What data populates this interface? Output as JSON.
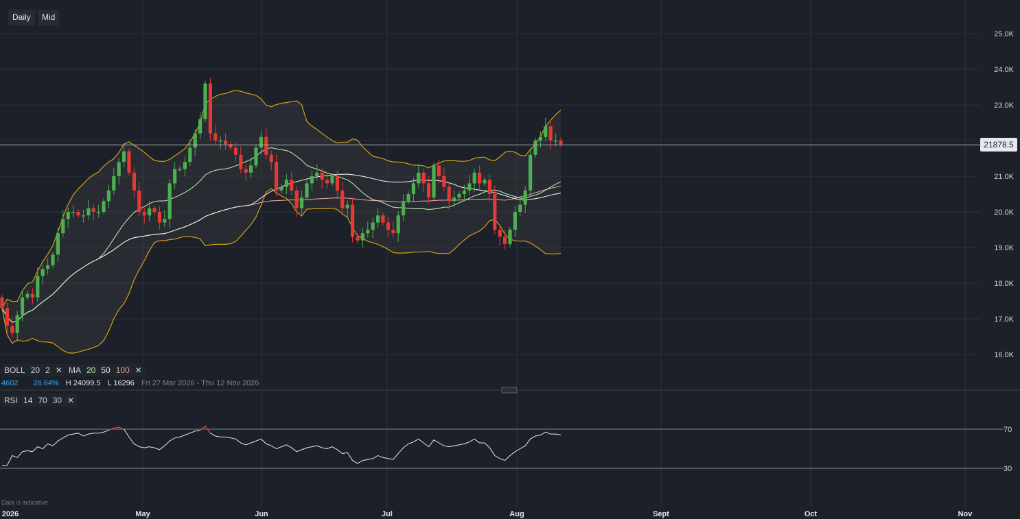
{
  "toolbar": {
    "interval_label": "Daily",
    "price_type_label": "Mid"
  },
  "current_price": "21878.5",
  "legend": {
    "boll": {
      "label": "BOLL",
      "p1": "20",
      "p2": "2"
    },
    "ma": {
      "label": "MA",
      "p1": "20",
      "p2": "50",
      "p3": "100"
    },
    "rsi": {
      "label": "RSI",
      "p1": "14",
      "p2": "70",
      "p3": "30"
    },
    "close_symbol": "✕"
  },
  "info": {
    "change": "4602",
    "change_pct": "26.64%",
    "high": "H 24099.5",
    "low": "L 16296",
    "range": "Fri 27 Mar 2026 - Thu 12 Nov 2026"
  },
  "disclaimer": "Data is indicative",
  "colors": {
    "background": "#1c2129",
    "up": "#4caf50",
    "down": "#e53935",
    "boll": "#d4a017",
    "ma20": "#b5e8b0",
    "ma50": "#e8ece8",
    "ma100": "#e89a9a",
    "rsi": "#e8e8e8",
    "rsi_overbought": "#e53935"
  },
  "chart_data": {
    "type": "candlestick",
    "y_ticks": [
      "25.0K",
      "24.0K",
      "23.0K",
      "22.0K",
      "21.0K",
      "20.0K",
      "19.0K",
      "18.0K",
      "17.0K",
      "16.0K"
    ],
    "y_values": [
      25000,
      24000,
      23000,
      22000,
      21000,
      20000,
      19000,
      18000,
      17000,
      16000
    ],
    "x_labels": [
      "2026",
      "May",
      "Jun",
      "Jul",
      "Aug",
      "Sept",
      "Oct",
      "Nov"
    ],
    "price_range": [
      15400,
      25500
    ],
    "closes": [
      17300,
      16800,
      16600,
      17100,
      17600,
      17700,
      17600,
      18200,
      18400,
      18500,
      18800,
      19400,
      19800,
      20000,
      20000,
      19900,
      19900,
      20100,
      20000,
      20000,
      20300,
      20600,
      21000,
      21400,
      21700,
      21100,
      20600,
      20000,
      19900,
      20100,
      20000,
      19700,
      19800,
      20800,
      21200,
      21200,
      21400,
      21800,
      22200,
      22600,
      23600,
      22200,
      22000,
      22000,
      21900,
      21800,
      21600,
      21200,
      21100,
      21300,
      21800,
      22100,
      21600,
      21400,
      20600,
      20700,
      20900,
      20600,
      20100,
      20400,
      20800,
      21000,
      21100,
      20900,
      20800,
      21000,
      20600,
      20100,
      20200,
      19300,
      19200,
      19400,
      19500,
      19700,
      19900,
      19700,
      19500,
      19400,
      19900,
      20300,
      20500,
      20800,
      21100,
      20800,
      20400,
      21300,
      21000,
      20700,
      20300,
      20400,
      20500,
      20600,
      20800,
      21100,
      20800,
      20900,
      20500,
      19500,
      19300,
      19100,
      19500,
      20000,
      20200,
      20600,
      21600,
      22000,
      22100,
      22400,
      22000,
      22000,
      21900
    ],
    "rsi": {
      "levels": [
        70,
        30
      ],
      "values": [
        33,
        33,
        43,
        41,
        47,
        48,
        47,
        52,
        50,
        55,
        53,
        58,
        61,
        64,
        65,
        66,
        63,
        65,
        66,
        66,
        67,
        69,
        71,
        72,
        70,
        62,
        55,
        52,
        51,
        52,
        51,
        49,
        53,
        58,
        61,
        62,
        64,
        66,
        68,
        69,
        73,
        66,
        63,
        62,
        62,
        61,
        60,
        56,
        54,
        56,
        58,
        60,
        55,
        53,
        50,
        52,
        54,
        51,
        47,
        49,
        51,
        52,
        53,
        51,
        50,
        52,
        49,
        45,
        46,
        38,
        35,
        38,
        39,
        40,
        43,
        41,
        40,
        39,
        45,
        51,
        55,
        57,
        60,
        56,
        52,
        59,
        56,
        53,
        52,
        53,
        54,
        55,
        57,
        60,
        56,
        56,
        51,
        43,
        40,
        38,
        43,
        47,
        50,
        53,
        60,
        63,
        64,
        67,
        65,
        65,
        64
      ]
    }
  }
}
